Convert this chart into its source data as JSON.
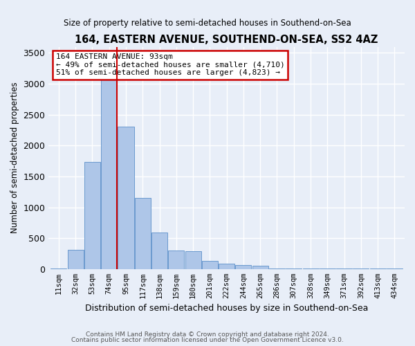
{
  "title": "164, EASTERN AVENUE, SOUTHEND-ON-SEA, SS2 4AZ",
  "subtitle": "Size of property relative to semi-detached houses in Southend-on-Sea",
  "xlabel": "Distribution of semi-detached houses by size in Southend-on-Sea",
  "ylabel": "Number of semi-detached properties",
  "footer1": "Contains HM Land Registry data © Crown copyright and database right 2024.",
  "footer2": "Contains public sector information licensed under the Open Government Licence v3.0.",
  "annotation_title": "164 EASTERN AVENUE: 93sqm",
  "annotation_line1": "← 49% of semi-detached houses are smaller (4,710)",
  "annotation_line2": "51% of semi-detached houses are larger (4,823) →",
  "property_size": 93,
  "bar_categories": [
    "11sqm",
    "32sqm",
    "53sqm",
    "74sqm",
    "95sqm",
    "117sqm",
    "138sqm",
    "159sqm",
    "180sqm",
    "201sqm",
    "222sqm",
    "244sqm",
    "265sqm",
    "286sqm",
    "307sqm",
    "328sqm",
    "349sqm",
    "371sqm",
    "392sqm",
    "413sqm",
    "434sqm"
  ],
  "bar_values": [
    5,
    310,
    1730,
    3380,
    2310,
    1150,
    590,
    300,
    290,
    135,
    85,
    65,
    50,
    10,
    5,
    5,
    5,
    5,
    5,
    5,
    5
  ],
  "bar_color": "#aec6e8",
  "bar_edge_color": "#5b8fc9",
  "property_line_color": "#cc0000",
  "annotation_box_color": "#cc0000",
  "bg_color": "#e8eef8",
  "plot_bg_color": "#e8eef8",
  "grid_color": "#ffffff",
  "ylim": [
    0,
    3600
  ],
  "yticks": [
    0,
    500,
    1000,
    1500,
    2000,
    2500,
    3000,
    3500
  ]
}
